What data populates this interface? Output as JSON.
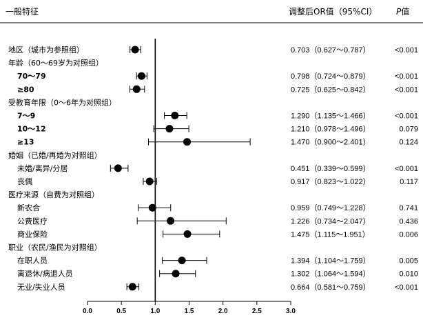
{
  "header": {
    "characteristic": "一般特征",
    "or_ci": "调整后OR值（95%CI）",
    "p_label_italic": "P",
    "p_label_suffix": "值"
  },
  "chart_data": {
    "type": "forest",
    "title": "",
    "xlabel": "",
    "ylabel": "",
    "xlim": [
      0,
      3.0
    ],
    "x_ticks": [
      "0.0",
      "0.5",
      "1.0",
      "1.5",
      "2.0",
      "2.5",
      "3.0"
    ],
    "reference_line": 1.0,
    "rows": [
      {
        "label": "地区（城市为参照组）",
        "indent": false,
        "or": 0.703,
        "lo": 0.627,
        "hi": 0.787,
        "or_text": "0.703（0.627～0.787）",
        "p": "<0.001"
      },
      {
        "label": "年龄（60～69岁为对照组）",
        "indent": false,
        "header": true
      },
      {
        "label": "70～79",
        "indent": true,
        "bold": true,
        "or": 0.798,
        "lo": 0.724,
        "hi": 0.879,
        "or_text": "0.798（0.724～0.879）",
        "p": "<0.001"
      },
      {
        "label": "≥80",
        "indent": true,
        "bold": true,
        "or": 0.725,
        "lo": 0.625,
        "hi": 0.842,
        "or_text": "0.725（0.625～0.842）",
        "p": "<0.001"
      },
      {
        "label": "受教育年限（0～6年为对照组）",
        "indent": false,
        "header": true
      },
      {
        "label": "7～9",
        "indent": true,
        "bold": true,
        "or": 1.29,
        "lo": 1.135,
        "hi": 1.466,
        "or_text": "1.290（1.135～1.466）",
        "p": "<0.001"
      },
      {
        "label": "10～12",
        "indent": true,
        "bold": true,
        "or": 1.21,
        "lo": 0.978,
        "hi": 1.496,
        "or_text": "1.210（0.978～1.496）",
        "p": "0.079"
      },
      {
        "label": "≥13",
        "indent": true,
        "bold": true,
        "or": 1.47,
        "lo": 0.9,
        "hi": 2.401,
        "or_text": "1.470（0.900～2.401）",
        "p": "0.124"
      },
      {
        "label": "婚姻（已婚/再婚为对照组）",
        "indent": false,
        "header": true
      },
      {
        "label": "未婚/离异/分居",
        "indent": true,
        "or": 0.451,
        "lo": 0.339,
        "hi": 0.599,
        "or_text": "0.451（0.339～0.599）",
        "p": "<0.001"
      },
      {
        "label": "丧偶",
        "indent": true,
        "or": 0.917,
        "lo": 0.823,
        "hi": 1.022,
        "or_text": "0.917（0.823～1.022）",
        "p": "0.117"
      },
      {
        "label": "医疗来源（自费为对照组）",
        "indent": false,
        "header": true
      },
      {
        "label": "新农合",
        "indent": true,
        "or": 0.959,
        "lo": 0.749,
        "hi": 1.228,
        "or_text": "0.959（0.749～1.228）",
        "p": "0.741"
      },
      {
        "label": "公费医疗",
        "indent": true,
        "or": 1.226,
        "lo": 0.734,
        "hi": 2.047,
        "or_text": "1.226（0.734～2.047）",
        "p": "0.436"
      },
      {
        "label": "商业保险",
        "indent": true,
        "or": 1.475,
        "lo": 1.115,
        "hi": 1.951,
        "or_text": "1.475（1.115～1.951）",
        "p": "0.006"
      },
      {
        "label": "职业（农民/渔民为对照组）",
        "indent": false,
        "header": true
      },
      {
        "label": "在职人员",
        "indent": true,
        "or": 1.394,
        "lo": 1.104,
        "hi": 1.759,
        "or_text": "1.394（1.104～1.759）",
        "p": "0.005"
      },
      {
        "label": "离退休/病退人员",
        "indent": true,
        "or": 1.302,
        "lo": 1.064,
        "hi": 1.594,
        "or_text": "1.302（1.064～1.594）",
        "p": "0.010"
      },
      {
        "label": "无业/失业人员",
        "indent": true,
        "or": 0.664,
        "lo": 0.581,
        "hi": 0.759,
        "or_text": "0.664（0.581～0.759）",
        "p": "<0.001"
      }
    ]
  }
}
